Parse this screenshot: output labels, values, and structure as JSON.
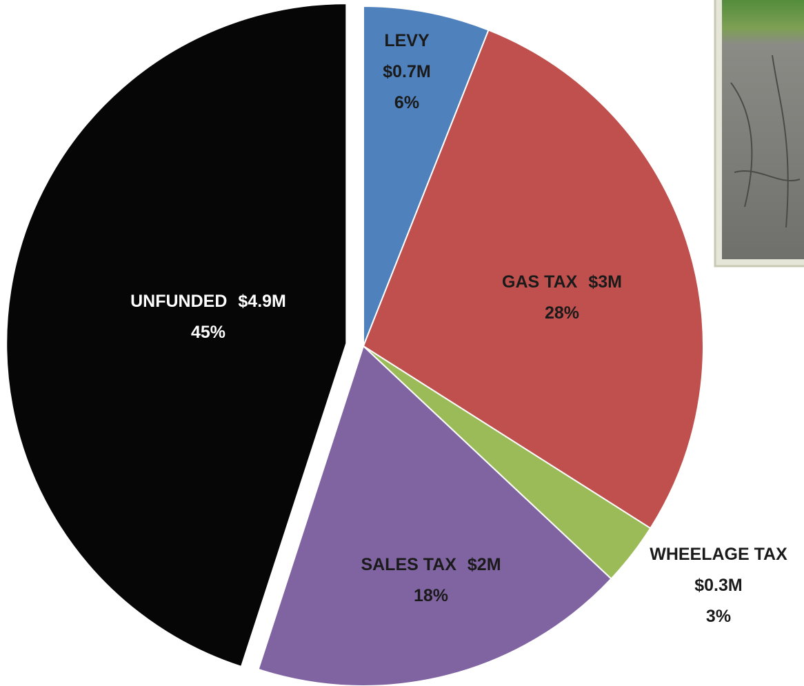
{
  "chart_data": {
    "type": "pie",
    "categories": [
      "LEVY",
      "GAS TAX",
      "WHEELAGE TAX",
      "SALES TAX",
      "UNFUNDED"
    ],
    "values": [
      6,
      28,
      3,
      18,
      45
    ],
    "value_labels": [
      "6%",
      "28%",
      "3%",
      "18%",
      "45%"
    ],
    "amount_labels": [
      "$0.7M",
      "$3M",
      "$0.3M",
      "$2M",
      "$4.9M"
    ],
    "colors": [
      "#4f81bd",
      "#c0504d",
      "#9bbb59",
      "#8064a2",
      "#060606"
    ],
    "exploded": [
      false,
      false,
      false,
      false,
      true
    ]
  }
}
